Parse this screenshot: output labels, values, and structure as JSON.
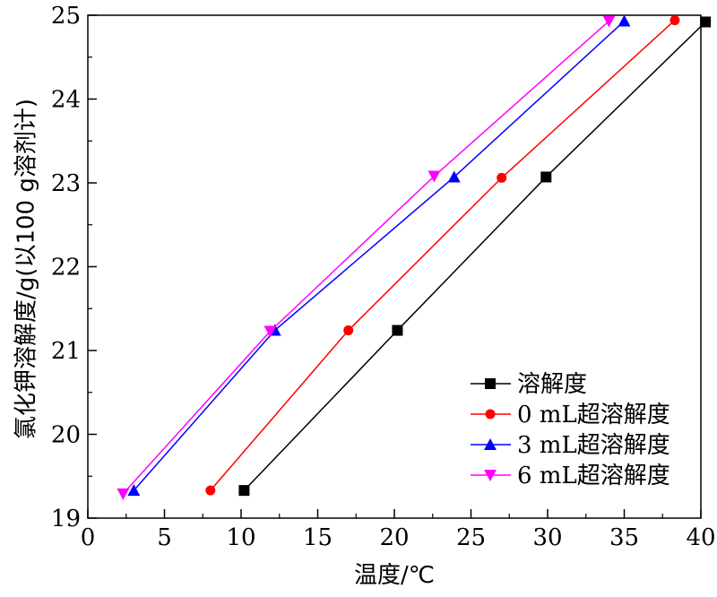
{
  "chart_data": {
    "type": "line",
    "xlabel": "温度/℃",
    "ylabel": "氯化钾溶解度/g(以100 g溶剂计)",
    "xlim": [
      0,
      40
    ],
    "ylim": [
      19,
      25
    ],
    "xticks": [
      "0",
      "5",
      "10",
      "15",
      "20",
      "25",
      "30",
      "35",
      "40"
    ],
    "yticks": [
      "19",
      "20",
      "21",
      "22",
      "23",
      "24",
      "25"
    ],
    "grid": false,
    "legend_position": "bottom-right",
    "series": [
      {
        "name": "溶解度",
        "color": "#000000",
        "marker": "square",
        "x": [
          10.2,
          20.2,
          29.9,
          40.3
        ],
        "y": [
          19.33,
          21.24,
          23.07,
          24.92
        ]
      },
      {
        "name": "0 mL超溶解度",
        "color": "#ff0000",
        "marker": "circle",
        "x": [
          8.0,
          17.0,
          27.0,
          38.3
        ],
        "y": [
          19.33,
          21.24,
          23.06,
          24.94
        ]
      },
      {
        "name": "3 mL超溶解度",
        "color": "#0000ff",
        "marker": "triangle-up",
        "x": [
          3.0,
          12.2,
          23.9,
          35.0
        ],
        "y": [
          19.33,
          21.24,
          23.07,
          24.93
        ]
      },
      {
        "name": "6 mL超溶解度",
        "color": "#ff00ff",
        "marker": "triangle-down",
        "x": [
          2.3,
          11.9,
          22.6,
          34.0
        ],
        "y": [
          19.29,
          21.23,
          23.08,
          24.93
        ]
      }
    ]
  }
}
